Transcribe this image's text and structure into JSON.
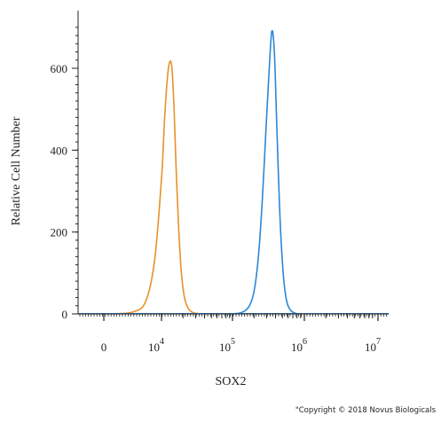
{
  "chart_data": {
    "type": "area",
    "title": "",
    "xlabel": "SOX2",
    "ylabel": "Relative Cell Number",
    "x_scale": "biexponential",
    "ylim": [
      0,
      700
    ],
    "grid": false,
    "legend": "none",
    "y_ticks": [
      "0",
      "200",
      "400",
      "600"
    ],
    "x_ticks": [
      {
        "base": "0",
        "exp": ""
      },
      {
        "base": "10",
        "exp": "4"
      },
      {
        "base": "10",
        "exp": "5"
      },
      {
        "base": "10",
        "exp": "6"
      },
      {
        "base": "10",
        "exp": "7"
      }
    ],
    "series": [
      {
        "color": "#e8912a",
        "x": [
          2000,
          4000,
          6000,
          8000,
          10000,
          11000,
          12000,
          13000,
          14000,
          15000,
          16000,
          17500,
          19000,
          21000,
          24000,
          28000,
          35000
        ],
        "y": [
          0,
          5,
          30,
          130,
          330,
          470,
          570,
          615,
          600,
          500,
          360,
          200,
          100,
          40,
          12,
          3,
          0
        ]
      },
      {
        "color": "#2b86d9",
        "x": [
          80000,
          130000,
          170000,
          200000,
          230000,
          260000,
          290000,
          320000,
          350000,
          380000,
          410000,
          450000,
          500000,
          560000,
          650000,
          800000
        ],
        "y": [
          0,
          3,
          20,
          60,
          150,
          290,
          450,
          590,
          690,
          640,
          470,
          260,
          110,
          35,
          8,
          0
        ]
      }
    ]
  },
  "copyright": "\"Copyright © 2018 Novus Biologicals"
}
